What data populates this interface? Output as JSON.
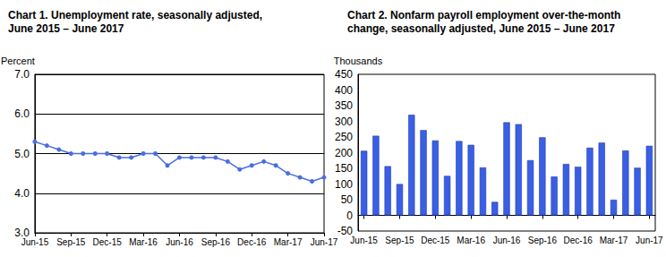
{
  "chart_data": [
    {
      "type": "line",
      "title": "Chart 1. Unemployment rate, seasonally adjusted,\nJune 2015 – June 2017",
      "y_label": "Percent",
      "categories": [
        "Jun-15",
        null,
        null,
        "Sep-15",
        null,
        null,
        "Dec-15",
        null,
        null,
        "Mar-16",
        null,
        null,
        "Jun-16",
        null,
        null,
        "Sep-16",
        null,
        null,
        "Dec-16",
        null,
        null,
        "Mar-17",
        null,
        null,
        "Jun-17"
      ],
      "values": [
        5.3,
        5.2,
        5.1,
        5.0,
        5.0,
        5.0,
        5.0,
        4.9,
        4.9,
        5.0,
        5.0,
        4.7,
        4.9,
        4.9,
        4.9,
        4.9,
        4.8,
        4.6,
        4.7,
        4.8,
        4.7,
        4.5,
        4.4,
        4.3,
        4.4
      ],
      "color": "#4a6ee0",
      "marker": "circle",
      "ylim": [
        3,
        7
      ],
      "yticks": [
        {
          "value": 3,
          "label": "3.0"
        },
        {
          "value": 4,
          "label": "4.0"
        },
        {
          "value": 5,
          "label": "5.0"
        },
        {
          "value": 6,
          "label": "6.0"
        },
        {
          "value": 7,
          "label": "7.0"
        }
      ],
      "grid": true
    },
    {
      "type": "bar",
      "title": "Chart 2. Nonfarm payroll employment over-the-month\nchange, seasonally adjusted, June 2015 – June 2017",
      "y_label": "Thousands",
      "categories": [
        "Jun-15",
        null,
        null,
        "Sep-15",
        null,
        null,
        "Dec-15",
        null,
        null,
        "Mar-16",
        null,
        null,
        "Jun-16",
        null,
        null,
        "Sep-16",
        null,
        null,
        "Dec-16",
        null,
        null,
        "Mar-17",
        null,
        null,
        "Jun-17"
      ],
      "values": [
        206,
        254,
        157,
        100,
        321,
        272,
        239,
        126,
        237,
        225,
        153,
        43,
        297,
        291,
        176,
        249,
        124,
        164,
        155,
        216,
        232,
        50,
        207,
        152,
        222
      ],
      "color": "#3a5fe5",
      "ylim": [
        -50,
        450
      ],
      "yticks": [
        -50,
        0,
        50,
        100,
        150,
        200,
        250,
        300,
        350,
        400,
        450
      ],
      "grid": false
    }
  ]
}
